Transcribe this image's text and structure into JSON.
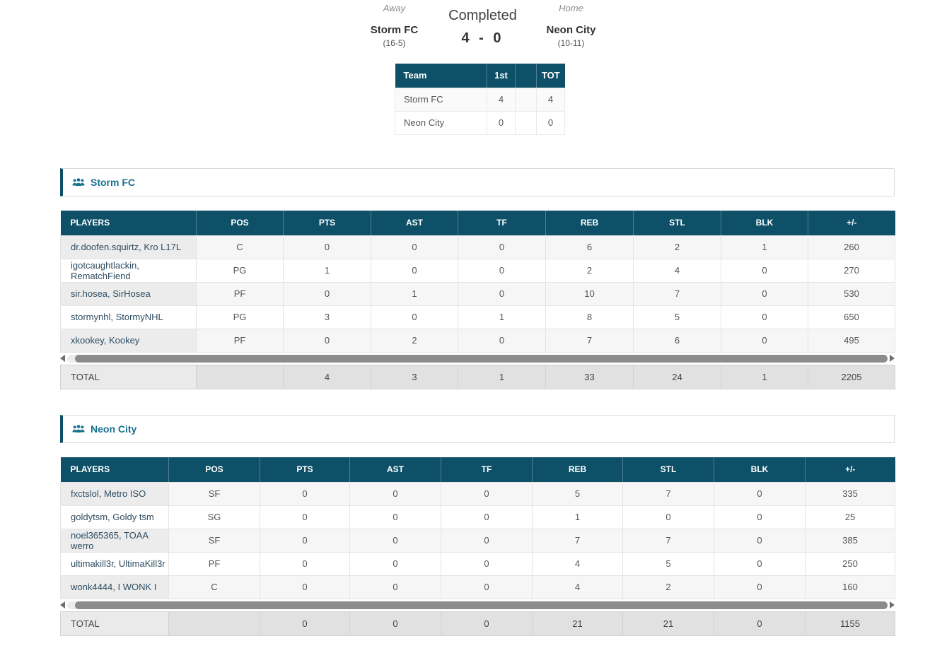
{
  "match": {
    "status": "Completed",
    "score": "4 - 0",
    "away": {
      "label": "Away",
      "name": "Storm FC",
      "record": "(16-5)"
    },
    "home": {
      "label": "Home",
      "name": "Neon City",
      "record": "(10-11)"
    }
  },
  "score_table": {
    "headers": [
      "Team",
      "1st",
      "",
      "TOT"
    ],
    "rows": [
      [
        "Storm FC",
        "4",
        "",
        "4"
      ],
      [
        "Neon City",
        "0",
        "",
        "0"
      ]
    ]
  },
  "box_scores": [
    {
      "team": "Storm FC",
      "headers": [
        "PLAYERS",
        "POS",
        "PTS",
        "AST",
        "TF",
        "REB",
        "STL",
        "BLK",
        "+/-"
      ],
      "rows": [
        [
          "dr.doofen.squirtz, Kro L17L",
          "C",
          "0",
          "0",
          "0",
          "6",
          "2",
          "1",
          "260"
        ],
        [
          "igotcaughtlackin, RematchFiend",
          "PG",
          "1",
          "0",
          "0",
          "2",
          "4",
          "0",
          "270"
        ],
        [
          "sir.hosea, SirHosea",
          "PF",
          "0",
          "1",
          "0",
          "10",
          "7",
          "0",
          "530"
        ],
        [
          "stormynhl, StormyNHL",
          "PG",
          "3",
          "0",
          "1",
          "8",
          "5",
          "0",
          "650"
        ],
        [
          "xkookey, Kookey",
          "PF",
          "0",
          "2",
          "0",
          "7",
          "6",
          "0",
          "495"
        ]
      ],
      "total": {
        "label": "TOTAL",
        "values": [
          "",
          "4",
          "3",
          "1",
          "33",
          "24",
          "1",
          "2205"
        ]
      }
    },
    {
      "team": "Neon City",
      "headers": [
        "PLAYERS",
        "POS",
        "PTS",
        "AST",
        "TF",
        "REB",
        "STL",
        "BLK",
        "+/-"
      ],
      "rows": [
        [
          "fxctslol, Metro ISO",
          "SF",
          "0",
          "0",
          "0",
          "5",
          "7",
          "0",
          "335"
        ],
        [
          "goldytsm, Goldy tsm",
          "SG",
          "0",
          "0",
          "0",
          "1",
          "0",
          "0",
          "25"
        ],
        [
          "noel365365, TOAA werro",
          "SF",
          "0",
          "0",
          "0",
          "7",
          "7",
          "0",
          "385"
        ],
        [
          "ultimakill3r, UltimaKill3r",
          "PF",
          "0",
          "0",
          "0",
          "4",
          "5",
          "0",
          "250"
        ],
        [
          "wonk4444, I WONK I",
          "C",
          "0",
          "0",
          "0",
          "4",
          "2",
          "0",
          "160"
        ]
      ],
      "total": {
        "label": "TOTAL",
        "values": [
          "",
          "0",
          "0",
          "0",
          "21",
          "21",
          "0",
          "1155"
        ]
      }
    }
  ],
  "icons": {
    "team_icon": "users-icon",
    "scroll_left": "scroll-left-arrow-icon",
    "scroll_right": "scroll-right-arrow-icon"
  },
  "colors": {
    "table_header_bg": "#0d5068",
    "section_accent": "#0d5068",
    "section_title": "#18718f",
    "player_name_text": "#2f4d62",
    "cell_text": "#555555",
    "total_row_bg": "#e1e1e1",
    "scrollbar_thumb": "#8c8c8c"
  }
}
